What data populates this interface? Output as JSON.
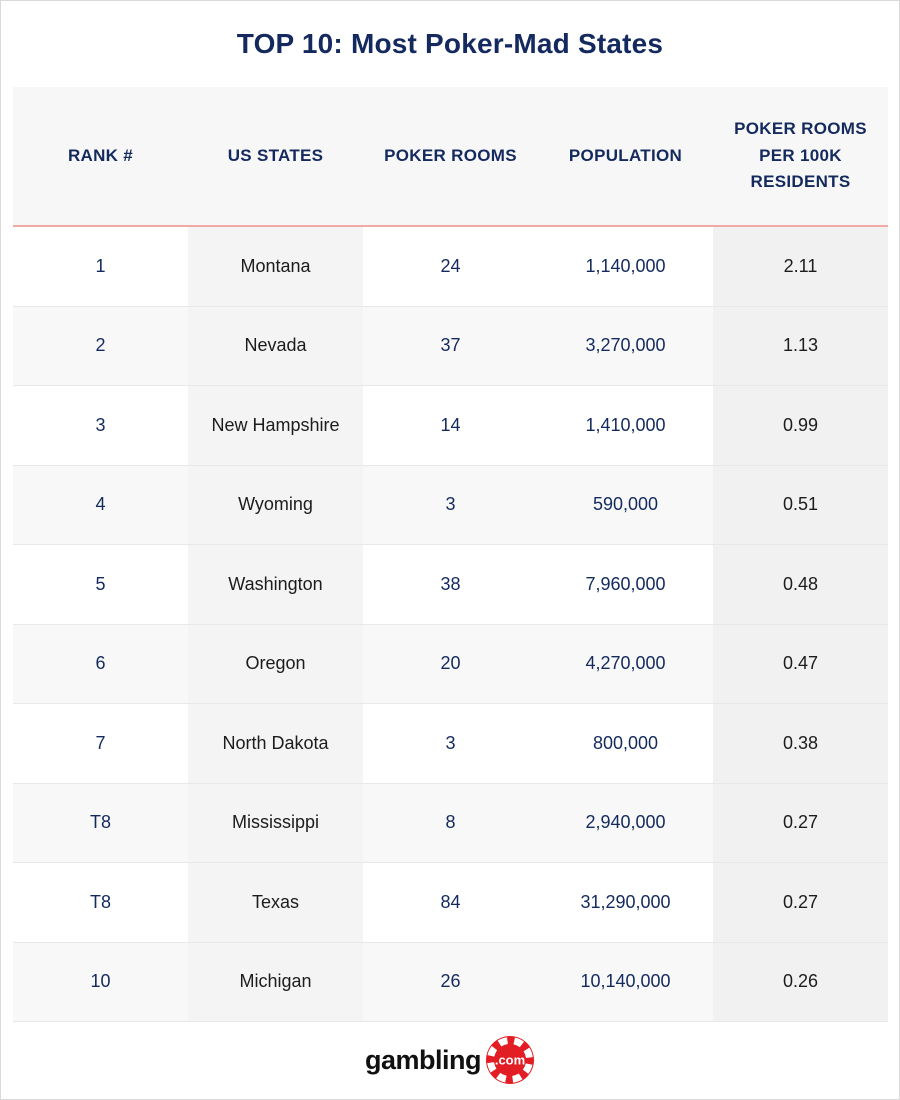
{
  "title": "TOP 10: Most Poker-Mad States",
  "chart_data": {
    "type": "table",
    "title": "TOP 10: Most Poker-Mad States",
    "columns": [
      "RANK #",
      "US STATES",
      "POKER ROOMS",
      "POPULATION",
      "POKER ROOMS PER 100K RESIDENTS"
    ],
    "rows": [
      [
        "1",
        "Montana",
        "24",
        "1,140,000",
        "2.11"
      ],
      [
        "2",
        "Nevada",
        "37",
        "3,270,000",
        "1.13"
      ],
      [
        "3",
        "New Hampshire",
        "14",
        "1,410,000",
        "0.99"
      ],
      [
        "4",
        "Wyoming",
        "3",
        "590,000",
        "0.51"
      ],
      [
        "5",
        "Washington",
        "38",
        "7,960,000",
        "0.48"
      ],
      [
        "6",
        "Oregon",
        "20",
        "4,270,000",
        "0.47"
      ],
      [
        "7",
        "North Dakota",
        "3",
        "800,000",
        "0.38"
      ],
      [
        "T8",
        "Mississippi",
        "8",
        "2,940,000",
        "0.27"
      ],
      [
        "T8",
        "Texas",
        "84",
        "31,290,000",
        "0.27"
      ],
      [
        "10",
        "Michigan",
        "26",
        "10,140,000",
        "0.26"
      ]
    ]
  },
  "footer": {
    "logo_text": "gambling",
    "logo_badge": ".com"
  },
  "colors": {
    "navy": "#142a5e",
    "header_rule_red": "#efa9a6",
    "chip_red": "#e21d24",
    "header_bg": "#f7f7f7",
    "state_col_bg": "#f4f4f4",
    "per100k_col_bg": "#f1f1f1"
  }
}
